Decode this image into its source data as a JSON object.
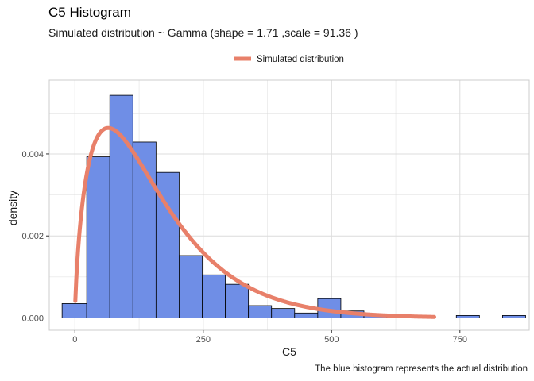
{
  "chart_data": {
    "type": "bar",
    "title": "C5 Histogram",
    "subtitle": "Simulated distribution ~ Gamma (shape = 1.71 ,scale = 91.36 )",
    "caption": "The blue histogram represents the actual distribution",
    "xlabel": "C5",
    "ylabel": "density",
    "xlim": [
      -50,
      885
    ],
    "ylim": [
      -0.0003,
      0.0058
    ],
    "x_ticks": [
      0,
      250,
      500,
      750
    ],
    "x_tick_labels": [
      "0",
      "250",
      "500",
      "750"
    ],
    "y_ticks": [
      0,
      0.002,
      0.004
    ],
    "y_tick_labels": [
      "0.000",
      "0.002",
      "0.004"
    ],
    "grid": true,
    "legend_position": "top",
    "bins": [
      {
        "x0": -25,
        "x1": 23,
        "density": 0.00035
      },
      {
        "x0": 23,
        "x1": 68,
        "density": 0.00393
      },
      {
        "x0": 68,
        "x1": 113,
        "density": 0.00543
      },
      {
        "x0": 113,
        "x1": 158,
        "density": 0.00429
      },
      {
        "x0": 158,
        "x1": 203,
        "density": 0.00355
      },
      {
        "x0": 203,
        "x1": 248,
        "density": 0.00152
      },
      {
        "x0": 248,
        "x1": 293,
        "density": 0.00105
      },
      {
        "x0": 293,
        "x1": 338,
        "density": 0.00082
      },
      {
        "x0": 338,
        "x1": 383,
        "density": 0.0003
      },
      {
        "x0": 383,
        "x1": 428,
        "density": 0.00023
      },
      {
        "x0": 428,
        "x1": 473,
        "density": 0.00012
      },
      {
        "x0": 473,
        "x1": 518,
        "density": 0.00047
      },
      {
        "x0": 518,
        "x1": 563,
        "density": 0.00017
      },
      {
        "x0": 563,
        "x1": 608,
        "density": 6e-05
      },
      {
        "x0": 608,
        "x1": 653,
        "density": 6e-05
      },
      {
        "x0": 653,
        "x1": 698,
        "density": 6e-05
      },
      {
        "x0": 698,
        "x1": 743,
        "density": 0.0
      },
      {
        "x0": 743,
        "x1": 788,
        "density": 6e-05
      },
      {
        "x0": 788,
        "x1": 833,
        "density": 0.0
      },
      {
        "x0": 833,
        "x1": 878,
        "density": 6e-05
      }
    ],
    "series": [
      {
        "name": "Simulated distribution",
        "type": "gamma_density",
        "shape": 1.71,
        "scale": 91.36,
        "x_range": [
          0,
          700
        ]
      }
    ],
    "colors": {
      "bar_fill": "#6f8ee6",
      "bar_stroke": "#000000",
      "curve": "#e8806a",
      "grid": "#dcdcdc",
      "panel_border": "#cccccc"
    }
  }
}
